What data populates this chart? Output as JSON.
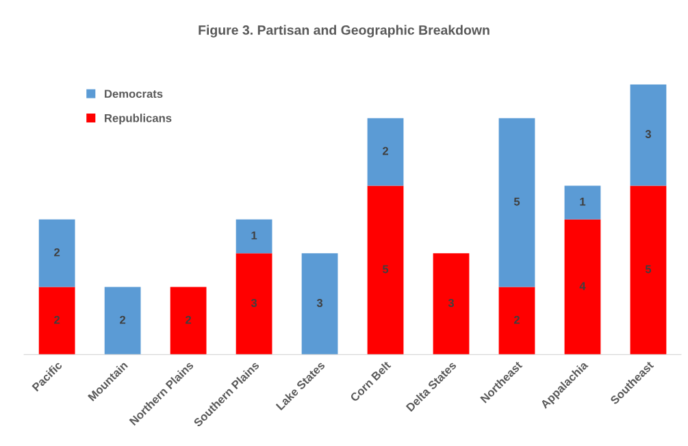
{
  "chart_data": {
    "type": "bar",
    "stacked": true,
    "title": "Figure 3. Partisan and Geographic Breakdown",
    "categories": [
      "Pacific",
      "Mountain",
      "Northern Plains",
      "Southern Plains",
      "Lake States",
      "Corn Belt",
      "Delta States",
      "Northeast",
      "Appalachia",
      "Southeast"
    ],
    "series": [
      {
        "name": "Republicans",
        "color": "#ff0000",
        "values": [
          2,
          null,
          2,
          3,
          null,
          5,
          3,
          2,
          4,
          5
        ]
      },
      {
        "name": "Democrats",
        "color": "#5b9bd5",
        "values": [
          2,
          2,
          null,
          1,
          3,
          2,
          null,
          5,
          1,
          3
        ]
      }
    ],
    "tick_labels": "x",
    "data_labels": true,
    "grid": false,
    "legend": "top left"
  }
}
